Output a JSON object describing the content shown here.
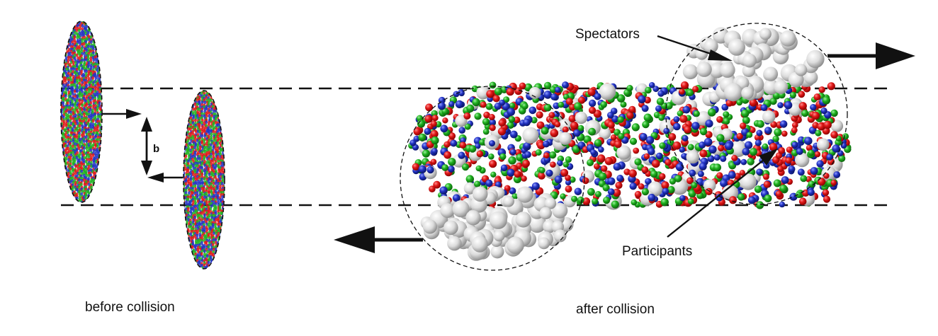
{
  "labels": {
    "impact_parameter": "b",
    "spectators": "Spectators",
    "participants": "Participants",
    "before": "before collision",
    "after": "after collision"
  },
  "colors": {
    "quark_red": "#e01818",
    "quark_green": "#1fb11f",
    "quark_blue": "#2233c4",
    "spectator_gray": "#d2d2d2",
    "line": "#111111"
  },
  "particle_counts": {
    "participant_cloud": 1200,
    "spectator_cloud_right": 70,
    "spectator_cloud_left": 80
  }
}
